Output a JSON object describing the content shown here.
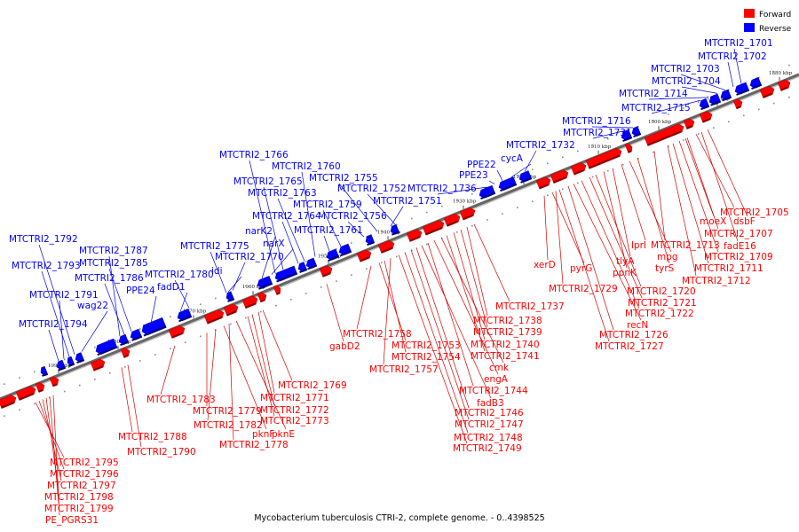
{
  "caption": "Mycobacterium tuberculosis CTRI-2, complete genome. - 0..4398525",
  "legend": [
    {
      "label": "Forward",
      "color": "#ff0000"
    },
    {
      "label": "Reverse",
      "color": "#0000ff"
    }
  ],
  "colors": {
    "forward": "#ff0000",
    "reverse": "#0000ff",
    "forward_leader": "#d40000",
    "reverse_leader": "#0000e0",
    "backbone": "#666666"
  },
  "ticks": [
    "1990 kbp",
    "1980 kbp",
    "1970 kbp",
    "1960 kbp",
    "1950 kbp",
    "1940 kbp",
    "1930 kbp",
    "1920 kbp",
    "1910 kbp",
    "1900 kbp",
    "1890 kbp",
    "1880 kbp"
  ],
  "reverse_labels": [
    "MTCTRI2_1701",
    "MTCTRI2_1702",
    "MTCTRI2_1703",
    "MTCTRI2_1704",
    "MTCTRI2_1714",
    "MTCTRI2_1715",
    "MTCTRI2_1716",
    "MTCTRI2_1731",
    "MTCTRI2_1732",
    "cycA",
    "PPE22",
    "PPE23",
    "MTCTRI2_1736",
    "MTCTRI2_1752",
    "MTCTRI2_1751",
    "MTCTRI2_1755",
    "MTCTRI2_1756",
    "MTCTRI2_1759",
    "MTCTRI2_1761",
    "MTCTRI2_1760",
    "MTCTRI2_1763",
    "MTCTRI2_1764",
    "MTCTRI2_1765",
    "MTCTRI2_1766",
    "narK2",
    "narX",
    "MTCTRI2_1770",
    "MTCTRI2_1775",
    "idi",
    "MTCTRI2_1780",
    "fadD1",
    "PPE24",
    "MTCTRI2_1785",
    "MTCTRI2_1786",
    "MTCTRI2_1787",
    "MTCTRI2_1792",
    "MTCTRI2_1793",
    "MTCTRI2_1791",
    "wag22",
    "MTCTRI2_1794"
  ],
  "forward_labels": [
    "MTCTRI2_1705",
    "MTCTRI2_1707",
    "MTCTRI2_1709",
    "MTCTRI2_1711",
    "MTCTRI2_1712",
    "fadE16",
    "moeX",
    "dsbF",
    "MTCTRI2_1713",
    "tyrS",
    "mpg",
    "lprI",
    "tlyA",
    "ppnK",
    "MTCTRI2_1720",
    "MTCTRI2_1721",
    "MTCTRI2_1722",
    "recN",
    "MTCTRI2_1726",
    "MTCTRI2_1727",
    "xerD",
    "pyrG",
    "MTCTRI2_1729",
    "MTCTRI2_1737",
    "MTCTRI2_1738",
    "MTCTRI2_1739",
    "MTCTRI2_1740",
    "MTCTRI2_1741",
    "cmk",
    "engA",
    "MTCTRI2_1744",
    "fadB3",
    "MTCTRI2_1746",
    "MTCTRI2_1747",
    "MTCTRI2_1748",
    "MTCTRI2_1749",
    "MTCTRI2_1758",
    "MTCTRI2_1753",
    "MTCTRI2_1754",
    "MTCTRI2_1757",
    "gabD2",
    "MTCTRI2_1769",
    "MTCTRI2_1771",
    "MTCTRI2_1772",
    "MTCTRI2_1773",
    "MTCTRI2_1783",
    "MTCTRI2_1779",
    "MTCTRI2_1782",
    "pknF",
    "pknE",
    "MTCTRI2_1778",
    "MTCTRI2_1788",
    "MTCTRI2_1790",
    "MTCTRI2_1795",
    "MTCTRI2_1796",
    "MTCTRI2_1797",
    "MTCTRI2_1798",
    "MTCTRI2_1799",
    "PE_PGRS31"
  ]
}
